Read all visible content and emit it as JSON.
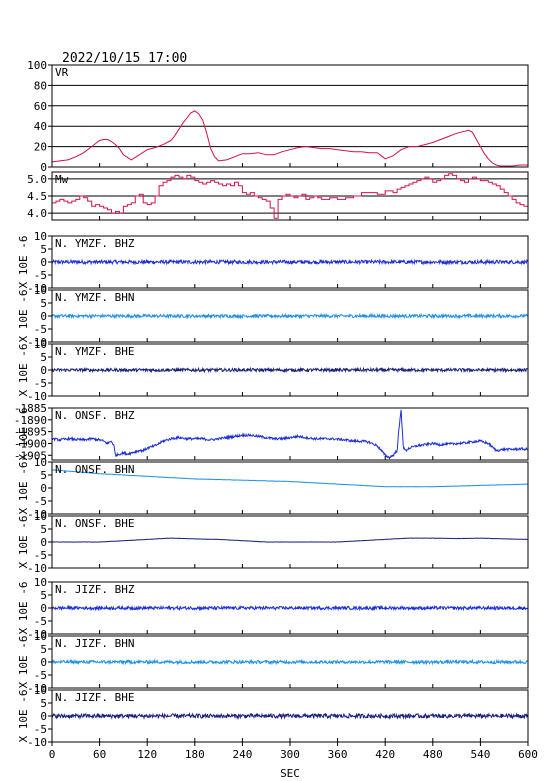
{
  "header": {
    "datetime": "2022/10/15 17:00"
  },
  "xaxis": {
    "label": "SEC",
    "ticks": [
      0,
      60,
      120,
      180,
      240,
      300,
      360,
      420,
      480,
      540,
      600
    ],
    "range": [
      0,
      600
    ]
  },
  "chart_data": [
    {
      "type": "line",
      "id": "vr",
      "label": "VR",
      "color": "#d1124a",
      "ylim": [
        0,
        100
      ],
      "yticks": [
        0,
        20,
        40,
        60,
        80,
        100
      ],
      "grid": true,
      "x": [
        0,
        10,
        20,
        30,
        40,
        50,
        55,
        60,
        65,
        70,
        75,
        80,
        85,
        90,
        100,
        110,
        120,
        125,
        130,
        140,
        150,
        155,
        160,
        165,
        170,
        175,
        180,
        185,
        190,
        195,
        200,
        205,
        210,
        220,
        230,
        240,
        250,
        260,
        270,
        280,
        290,
        300,
        310,
        320,
        330,
        340,
        350,
        360,
        370,
        380,
        390,
        400,
        410,
        420,
        430,
        440,
        450,
        460,
        470,
        480,
        490,
        500,
        510,
        520,
        525,
        530,
        535,
        540,
        545,
        550,
        555,
        560,
        565,
        570,
        580,
        590,
        600
      ],
      "values": [
        5,
        6,
        7,
        10,
        14,
        20,
        23,
        26,
        27,
        27,
        25,
        22,
        18,
        12,
        7,
        12,
        17,
        18,
        19,
        22,
        26,
        31,
        37,
        43,
        48,
        53,
        55,
        52,
        46,
        33,
        18,
        10,
        6,
        7,
        10,
        13,
        13,
        14,
        12,
        12,
        15,
        17,
        19,
        20,
        19,
        18,
        18,
        17,
        16,
        15,
        15,
        14,
        14,
        8,
        11,
        17,
        20,
        20,
        22,
        24,
        27,
        30,
        33,
        35,
        36,
        34,
        27,
        20,
        13,
        8,
        4,
        2,
        1,
        1,
        1,
        2,
        2
      ]
    },
    {
      "type": "line",
      "id": "mw",
      "label": "Mw",
      "color": "#d1124a",
      "step": true,
      "ylim": [
        3.8,
        5.2
      ],
      "yticks": [
        4.0,
        4.5,
        5.0
      ],
      "yticklabels": [
        "4.0",
        "4.5",
        "5.0"
      ],
      "grid": true,
      "x": [
        0,
        5,
        10,
        15,
        20,
        25,
        30,
        35,
        40,
        45,
        50,
        55,
        60,
        65,
        70,
        75,
        80,
        85,
        90,
        95,
        100,
        105,
        110,
        115,
        120,
        125,
        130,
        135,
        140,
        145,
        150,
        155,
        160,
        165,
        170,
        175,
        180,
        185,
        190,
        195,
        200,
        205,
        210,
        215,
        220,
        225,
        230,
        235,
        240,
        245,
        250,
        255,
        260,
        265,
        270,
        275,
        280,
        285,
        290,
        295,
        300,
        305,
        310,
        315,
        320,
        325,
        330,
        335,
        340,
        350,
        360,
        370,
        380,
        390,
        400,
        410,
        420,
        425,
        430,
        435,
        440,
        445,
        450,
        455,
        460,
        465,
        470,
        475,
        480,
        485,
        490,
        495,
        500,
        505,
        510,
        515,
        520,
        525,
        530,
        535,
        540,
        545,
        550,
        555,
        560,
        565,
        570,
        575,
        580,
        585,
        590,
        595,
        600
      ],
      "values": [
        4.3,
        4.35,
        4.4,
        4.35,
        4.3,
        4.35,
        4.4,
        4.5,
        4.45,
        4.35,
        4.2,
        4.25,
        4.2,
        4.15,
        4.1,
        4.0,
        4.05,
        4.0,
        4.2,
        4.25,
        4.3,
        4.5,
        4.55,
        4.3,
        4.25,
        4.3,
        4.5,
        4.8,
        4.9,
        4.95,
        5.05,
        5.1,
        5.05,
        5.0,
        5.1,
        5.05,
        4.95,
        4.9,
        4.85,
        4.9,
        4.95,
        4.9,
        4.85,
        4.8,
        4.85,
        4.8,
        4.9,
        4.8,
        4.6,
        4.55,
        4.6,
        4.5,
        4.45,
        4.4,
        4.35,
        4.15,
        3.85,
        4.4,
        4.5,
        4.55,
        4.5,
        4.45,
        4.5,
        4.55,
        4.4,
        4.45,
        4.5,
        4.45,
        4.4,
        4.45,
        4.4,
        4.45,
        4.5,
        4.6,
        4.6,
        4.55,
        4.65,
        4.65,
        4.6,
        4.7,
        4.75,
        4.8,
        4.85,
        4.9,
        4.95,
        5.0,
        5.05,
        5.0,
        4.9,
        4.95,
        5.0,
        5.1,
        5.15,
        5.1,
        5.0,
        4.95,
        4.9,
        5.0,
        5.05,
        5.0,
        4.95,
        4.95,
        4.9,
        4.85,
        4.8,
        4.7,
        4.6,
        4.5,
        4.4,
        4.3,
        4.25,
        4.2,
        4.3
      ]
    },
    {
      "type": "line",
      "id": "ymzf-bhz",
      "label": "N. YMZF. BHZ",
      "color": "#1c2fd6",
      "ylabel": "X 10E -6",
      "ylim": [
        -10,
        10
      ],
      "yticks": [
        -10,
        -5,
        0,
        5,
        10
      ],
      "yticklabels": [
        "-10",
        "-5",
        "0",
        "5",
        "10"
      ],
      "baseline": 0,
      "amplitude": 0.7
    },
    {
      "type": "line",
      "id": "ymzf-bhn",
      "label": "N. YMZF. BHN",
      "color": "#1e90e8",
      "ylabel": "X 10E -6",
      "ylim": [
        -10,
        10
      ],
      "yticks": [
        -10,
        -5,
        0,
        5,
        10
      ],
      "yticklabels": [
        "-10",
        "-5",
        "0",
        "5",
        "10"
      ],
      "baseline": 0,
      "amplitude": 0.6
    },
    {
      "type": "line",
      "id": "ymzf-bhe",
      "label": "N. YMZF. BHE",
      "color": "#18207a",
      "ylabel": "X 10E -6",
      "ylim": [
        -10,
        10
      ],
      "yticks": [
        -10,
        -5,
        0,
        5,
        10
      ],
      "yticklabels": [
        "-10",
        "-5",
        "0",
        "5",
        "10"
      ],
      "baseline": 0,
      "amplitude": 0.6
    },
    {
      "type": "line",
      "id": "onsf-bhz",
      "label": "N. ONSF. BHZ",
      "color": "#1c2fd6",
      "ylabel": "X 10E -6",
      "ylim": [
        -1907,
        -1885
      ],
      "yticks": [
        -1905,
        -1900,
        -1895,
        -1890,
        -1885
      ],
      "yticklabels": [
        "-1905",
        "-1900",
        "-1895",
        "-1890",
        "-1885"
      ],
      "x": [
        0,
        10,
        20,
        30,
        40,
        50,
        60,
        65,
        70,
        75,
        78,
        80,
        85,
        90,
        95,
        100,
        105,
        110,
        115,
        120,
        125,
        130,
        135,
        140,
        150,
        160,
        170,
        180,
        190,
        200,
        210,
        220,
        230,
        240,
        250,
        260,
        270,
        280,
        290,
        300,
        310,
        320,
        330,
        340,
        350,
        360,
        370,
        380,
        390,
        400,
        410,
        415,
        420,
        425,
        430,
        435,
        437,
        440,
        443,
        446,
        450,
        460,
        470,
        480,
        490,
        500,
        510,
        520,
        530,
        540,
        545,
        550,
        555,
        560,
        570,
        580,
        590,
        600
      ],
      "values": [
        -1898,
        -1898.5,
        -1898,
        -1898.3,
        -1898.5,
        -1898,
        -1898.5,
        -1899,
        -1900,
        -1899,
        -1901,
        -1905,
        -1904.5,
        -1904,
        -1904.5,
        -1904,
        -1903.5,
        -1903,
        -1903,
        -1902,
        -1901.5,
        -1901,
        -1900,
        -1899,
        -1898,
        -1897.5,
        -1898,
        -1898,
        -1898,
        -1898.5,
        -1898,
        -1897.5,
        -1897,
        -1896.5,
        -1896.5,
        -1897,
        -1897.5,
        -1898,
        -1898,
        -1897.5,
        -1897,
        -1897.5,
        -1898,
        -1898,
        -1898,
        -1898.2,
        -1898.5,
        -1899,
        -1899,
        -1899.5,
        -1901,
        -1903,
        -1905,
        -1906,
        -1905,
        -1903,
        -1895,
        -1886,
        -1902,
        -1903,
        -1902,
        -1901,
        -1900.5,
        -1900,
        -1900.5,
        -1900.3,
        -1900,
        -1899.8,
        -1899.3,
        -1899,
        -1899.5,
        -1900,
        -1901.5,
        -1903,
        -1902.5,
        -1902.5,
        -1902.3,
        -1902.5
      ],
      "amplitude": 0.5
    },
    {
      "type": "line",
      "id": "onsf-bhn",
      "label": "N. ONSF. BHN",
      "color": "#1e90e8",
      "ylabel": "X 10E -6",
      "ylim": [
        -10,
        10
      ],
      "yticks": [
        -10,
        -5,
        0,
        5,
        10
      ],
      "yticklabels": [
        "-10",
        "-5",
        "0",
        "5",
        "10"
      ],
      "x": [
        0,
        60,
        120,
        180,
        240,
        300,
        360,
        420,
        480,
        540,
        600
      ],
      "values": [
        7,
        5.5,
        4.5,
        3.5,
        3,
        2.5,
        1.5,
        0.5,
        0.5,
        1,
        1.5
      ],
      "amplitude": 0.05
    },
    {
      "type": "line",
      "id": "onsf-bhe",
      "label": "N. ONSF. BHE",
      "color": "#18207a",
      "ylabel": "X 10E -6",
      "ylim": [
        -10,
        10
      ],
      "yticks": [
        -10,
        -5,
        0,
        5,
        10
      ],
      "yticklabels": [
        "-10",
        "-5",
        "0",
        "5",
        "10"
      ],
      "x": [
        0,
        60,
        90,
        120,
        150,
        180,
        210,
        240,
        270,
        300,
        330,
        360,
        390,
        420,
        450,
        480,
        510,
        540,
        570,
        600
      ],
      "values": [
        0,
        0,
        0.5,
        1,
        1.5,
        1.2,
        1,
        0.5,
        0,
        0,
        0,
        0,
        0.5,
        1,
        1.5,
        1.5,
        1.3,
        1.5,
        1.2,
        1
      ],
      "amplitude": 0.05
    },
    {
      "type": "line",
      "id": "jizf-bhz",
      "label": "N. JIZF. BHZ",
      "color": "#1c2fd6",
      "ylabel": "X 10E -6",
      "ylim": [
        -10,
        10
      ],
      "yticks": [
        -10,
        -5,
        0,
        5,
        10
      ],
      "yticklabels": [
        "-10",
        "-5",
        "0",
        "5",
        "10"
      ],
      "baseline": 0,
      "amplitude": 0.6
    },
    {
      "type": "line",
      "id": "jizf-bhn",
      "label": "N. JIZF. BHN",
      "color": "#1e90e8",
      "ylabel": "X 10E -6",
      "ylim": [
        -10,
        10
      ],
      "yticks": [
        -10,
        -5,
        0,
        5,
        10
      ],
      "yticklabels": [
        "-10",
        "-5",
        "0",
        "5",
        "10"
      ],
      "baseline": 0,
      "amplitude": 0.6
    },
    {
      "type": "line",
      "id": "jizf-bhe",
      "label": "N. JIZF. BHE",
      "color": "#18207a",
      "ylabel": "X 10E -6",
      "ylim": [
        -10,
        10
      ],
      "yticks": [
        -10,
        -5,
        0,
        5,
        10
      ],
      "yticklabels": [
        "-10",
        "-5",
        "0",
        "5",
        "10"
      ],
      "baseline": 0,
      "amplitude": 0.8
    }
  ]
}
